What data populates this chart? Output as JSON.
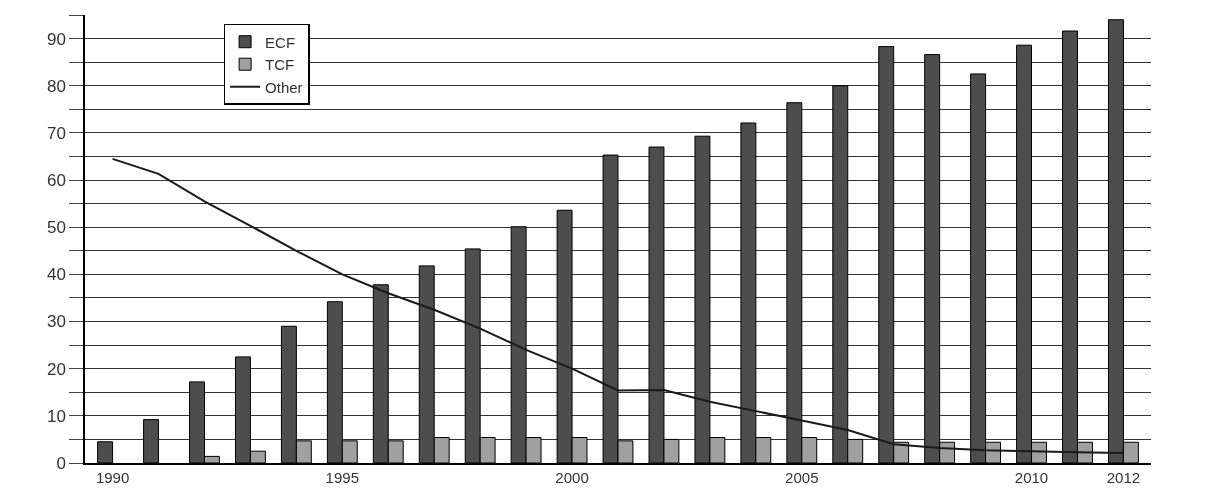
{
  "chart_data": {
    "type": "bar",
    "categories": [
      "1990",
      null,
      null,
      null,
      null,
      "1995",
      null,
      null,
      null,
      null,
      "2000",
      null,
      null,
      null,
      null,
      "2005",
      null,
      null,
      null,
      null,
      "2010",
      null,
      "2012"
    ],
    "series": [
      {
        "name": "ECF",
        "color": "#4d4d4d",
        "values": [
          4.5,
          9.2,
          17.2,
          22.5,
          29,
          34.2,
          37.8,
          41.8,
          45.4,
          50.1,
          53.6,
          65.3,
          67,
          69.3,
          72.1,
          76.4,
          80,
          88.3,
          86.6,
          82.5,
          88.6,
          91.6,
          94
        ]
      },
      {
        "name": "TCF",
        "color": "#a0a0a0",
        "values": [
          null,
          null,
          1.4,
          2.5,
          4.7,
          4.7,
          4.7,
          5.4,
          5.4,
          5.4,
          5.4,
          4.7,
          5,
          5.4,
          5.4,
          5.4,
          5,
          4.4,
          4.4,
          4.4,
          4.4,
          4.4,
          4.4
        ]
      },
      {
        "name": "Other",
        "type": "line",
        "color": "#1a1a1a",
        "values": [
          64.5,
          61.3,
          55.5,
          50.3,
          45,
          40,
          36,
          32.5,
          28.5,
          24,
          20,
          15.4,
          15.5,
          13,
          11,
          9,
          7,
          4,
          3.2,
          2.7,
          2.5,
          2.3,
          2.1
        ]
      }
    ],
    "ylim": [
      0,
      95
    ],
    "yticks": [
      0,
      {
        "value": 5,
        "label": null
      },
      10,
      {
        "value": 15,
        "label": null
      },
      20,
      {
        "value": 25,
        "label": null
      },
      30,
      {
        "value": 35,
        "label": null
      },
      40,
      {
        "value": 45,
        "label": null
      },
      50,
      {
        "value": 55,
        "label": null
      },
      60,
      {
        "value": 65,
        "label": null
      },
      70,
      {
        "value": 75,
        "label": null
      },
      80,
      {
        "value": 85,
        "label": null
      },
      90,
      {
        "value": 95,
        "label": null
      }
    ],
    "grid": "y",
    "legend": "top left",
    "marker": "none",
    "line_style": "solid"
  }
}
